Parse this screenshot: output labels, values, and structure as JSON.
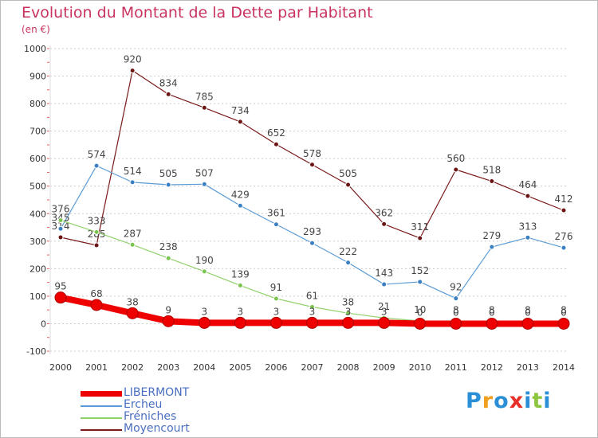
{
  "header": {
    "title": "Evolution du Montant de la Dette par Habitant",
    "unit": "(en €)"
  },
  "colors": {
    "title": "#c8345f",
    "legend_text": "#4a6fc0",
    "grid": "#cccccc",
    "axis_text": "#333333"
  },
  "chart_data": {
    "type": "line",
    "title": "Evolution du Montant de la Dette par Habitant",
    "ylabel": "(en €)",
    "xlabel": "",
    "ylim": [
      -100,
      1000
    ],
    "yticks": [
      -100,
      0,
      100,
      200,
      300,
      400,
      500,
      600,
      700,
      800,
      900,
      1000
    ],
    "x": [
      "2000",
      "2001",
      "2002",
      "2003",
      "2004",
      "2005",
      "2006",
      "2007",
      "2008",
      "2009",
      "2010",
      "2011",
      "2012",
      "2013",
      "2014"
    ],
    "grid": "horizontal dashed",
    "legend_position": "bottom-left",
    "series": [
      {
        "name": "Moyencourt",
        "color": "#7a1a1a",
        "marker_color": "#6b1414",
        "width": 1.2,
        "marker": 4,
        "values": [
          314,
          285,
          920,
          834,
          785,
          734,
          652,
          578,
          505,
          362,
          311,
          560,
          518,
          464,
          412
        ],
        "labels": [
          "314",
          "285",
          "920",
          "834",
          "785",
          "734",
          "652",
          "578",
          "505",
          "362",
          "311",
          "560",
          "518",
          "464",
          "412"
        ]
      },
      {
        "name": "Ercheu",
        "color": "#5b9bd5",
        "marker_color": "#3a7fc1",
        "width": 1.2,
        "marker": 4,
        "values": [
          345,
          574,
          514,
          505,
          507,
          429,
          361,
          293,
          222,
          143,
          152,
          92,
          279,
          313,
          276
        ],
        "labels": [
          "345",
          "574",
          "514",
          "505",
          "507",
          "429",
          "361",
          "293",
          "222",
          "143",
          "152",
          "92",
          "279",
          "313",
          "276"
        ]
      },
      {
        "name": "Fréniches",
        "color": "#8fd16a",
        "marker_color": "#7cc450",
        "width": 1.2,
        "marker": 4,
        "values": [
          376,
          333,
          287,
          238,
          190,
          139,
          91,
          61,
          38,
          21,
          10,
          8,
          8,
          8,
          8
        ],
        "labels": [
          "376",
          "333",
          "287",
          "238",
          "190",
          "139",
          "91",
          "61",
          "38",
          "21",
          "10",
          "8",
          "8",
          "8",
          "8"
        ]
      },
      {
        "name": "LIBERMONT",
        "color": "#ee0000",
        "marker_color": "#ee0000",
        "width": 8,
        "marker": 7,
        "values": [
          95,
          68,
          38,
          9,
          3,
          3,
          3,
          3,
          3,
          3,
          0,
          0,
          0,
          0,
          0
        ],
        "labels": [
          "95",
          "68",
          "38",
          "9",
          "3",
          "3",
          "3",
          "3",
          "3",
          "3",
          "0",
          "0",
          "0",
          "0",
          "0"
        ]
      }
    ]
  },
  "legend": [
    {
      "name": "LIBERMONT",
      "color": "#ee0000"
    },
    {
      "name": "Ercheu",
      "color": "#5b9bd5"
    },
    {
      "name": "Fréniches",
      "color": "#8fd16a"
    },
    {
      "name": "Moyencourt",
      "color": "#7a1a1a"
    }
  ],
  "logo": {
    "text": "Proxiti",
    "letter_colors": [
      "#2a8fd6",
      "#f0a020",
      "#2a8fd6",
      "#e8302a",
      "#2a8fd6",
      "#8cc63f",
      "#2a8fd6"
    ]
  }
}
